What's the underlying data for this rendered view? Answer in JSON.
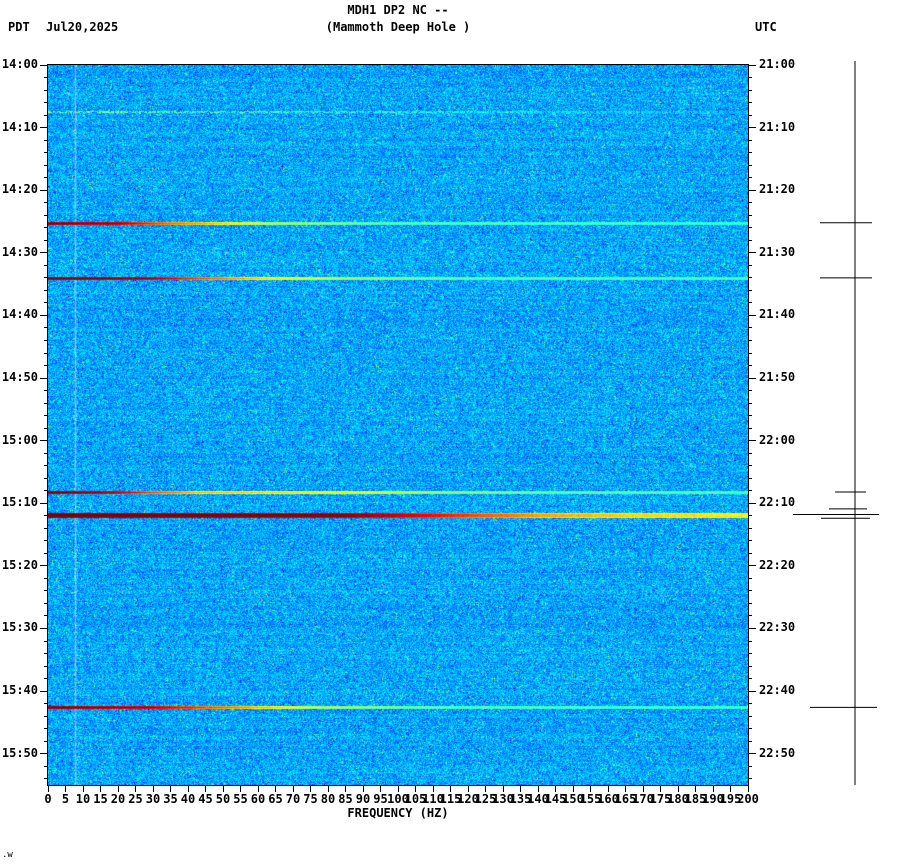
{
  "header": {
    "title_line1": "MDH1 DP2 NC --",
    "title_line2": "(Mammoth Deep Hole )",
    "tz_left": "PDT",
    "date": "Jul20,2025",
    "tz_right": "UTC"
  },
  "footer": {
    "corner_text": ".w"
  },
  "chart_data": {
    "type": "heatmap",
    "subtype": "seismic-spectrogram",
    "station": "MDH1 DP2 NC",
    "station_name": "Mammoth Deep Hole",
    "colormap": "jet",
    "xlabel": "FREQUENCY (HZ)",
    "x_range": [
      0,
      200
    ],
    "x_tick_step": 5,
    "x_tick_labels": [
      "0",
      "5",
      "10",
      "15",
      "20",
      "25",
      "30",
      "35",
      "40",
      "45",
      "50",
      "55",
      "60",
      "65",
      "70",
      "75",
      "80",
      "85",
      "90",
      "95",
      "100",
      "105",
      "110",
      "115",
      "120",
      "125",
      "130",
      "135",
      "140",
      "145",
      "150",
      "155",
      "160",
      "165",
      "170",
      "175",
      "180",
      "185",
      "190",
      "195",
      "200"
    ],
    "total_minutes": 115,
    "left_axis": {
      "timezone": "PDT",
      "tick_labels": [
        "14:00",
        "14:10",
        "14:20",
        "14:30",
        "14:40",
        "14:50",
        "15:00",
        "15:10",
        "15:20",
        "15:30",
        "15:40",
        "15:50"
      ]
    },
    "right_axis": {
      "timezone": "UTC",
      "tick_labels": [
        "21:00",
        "21:10",
        "21:20",
        "21:30",
        "21:40",
        "21:50",
        "22:00",
        "22:10",
        "22:20",
        "22:30",
        "22:40",
        "22:50"
      ]
    },
    "background_level_range": [
      0.21,
      0.36
    ],
    "vertical_stripe_hz": 7.7,
    "events": [
      {
        "pdt": "14:07",
        "utc": "21:07",
        "min": 7.5,
        "thickness": 2,
        "faint": true,
        "stops": [
          [
            0,
            0.52
          ],
          [
            30,
            0.48
          ],
          [
            80,
            0.44
          ],
          [
            130,
            0.38
          ],
          [
            200,
            0.32
          ]
        ]
      },
      {
        "pdt": "14:25",
        "utc": "21:25",
        "min": 25.2,
        "thickness": 3,
        "faint": false,
        "stops": [
          [
            0,
            1.03
          ],
          [
            20,
            0.97
          ],
          [
            30,
            0.82
          ],
          [
            46,
            0.7
          ],
          [
            65,
            0.56
          ],
          [
            95,
            0.47
          ],
          [
            200,
            0.44
          ]
        ]
      },
      {
        "pdt": "14:34",
        "utc": "21:34",
        "min": 34.0,
        "thickness": 3,
        "faint": false,
        "stops": [
          [
            0,
            1.03
          ],
          [
            28,
            0.97
          ],
          [
            42,
            0.82
          ],
          [
            60,
            0.68
          ],
          [
            88,
            0.52
          ],
          [
            125,
            0.46
          ],
          [
            200,
            0.45
          ]
        ]
      },
      {
        "pdt": "15:08",
        "utc": "22:08",
        "min": 68.2,
        "thickness": 3,
        "faint": false,
        "stops": [
          [
            0,
            1.03
          ],
          [
            18,
            0.96
          ],
          [
            28,
            0.82
          ],
          [
            42,
            0.7
          ],
          [
            85,
            0.63
          ],
          [
            115,
            0.52
          ],
          [
            145,
            0.47
          ],
          [
            200,
            0.46
          ]
        ]
      },
      {
        "pdt": "15:12",
        "utc": "22:12",
        "min": 71.8,
        "thickness": 5,
        "faint": false,
        "stops": [
          [
            0,
            1.05
          ],
          [
            85,
            0.99
          ],
          [
            105,
            0.9
          ],
          [
            122,
            0.8
          ],
          [
            140,
            0.72
          ],
          [
            165,
            0.67
          ],
          [
            200,
            0.64
          ]
        ]
      },
      {
        "pdt": "15:43",
        "utc": "22:43",
        "min": 102.6,
        "thickness": 3,
        "faint": false,
        "stops": [
          [
            0,
            1.03
          ],
          [
            28,
            0.97
          ],
          [
            44,
            0.82
          ],
          [
            60,
            0.7
          ],
          [
            80,
            0.56
          ],
          [
            115,
            0.47
          ],
          [
            200,
            0.45
          ]
        ]
      }
    ],
    "trace_spikes": [
      {
        "min": 25.2,
        "left": 35,
        "right": 17
      },
      {
        "min": 34.0,
        "left": 35,
        "right": 17
      },
      {
        "min": 68.2,
        "left": 20,
        "right": 11
      },
      {
        "min": 70.9,
        "left": 26,
        "right": 12
      },
      {
        "min": 71.8,
        "left": 62,
        "right": 24
      },
      {
        "min": 72.4,
        "left": 34,
        "right": 15
      },
      {
        "min": 102.6,
        "left": 45,
        "right": 22
      }
    ]
  }
}
